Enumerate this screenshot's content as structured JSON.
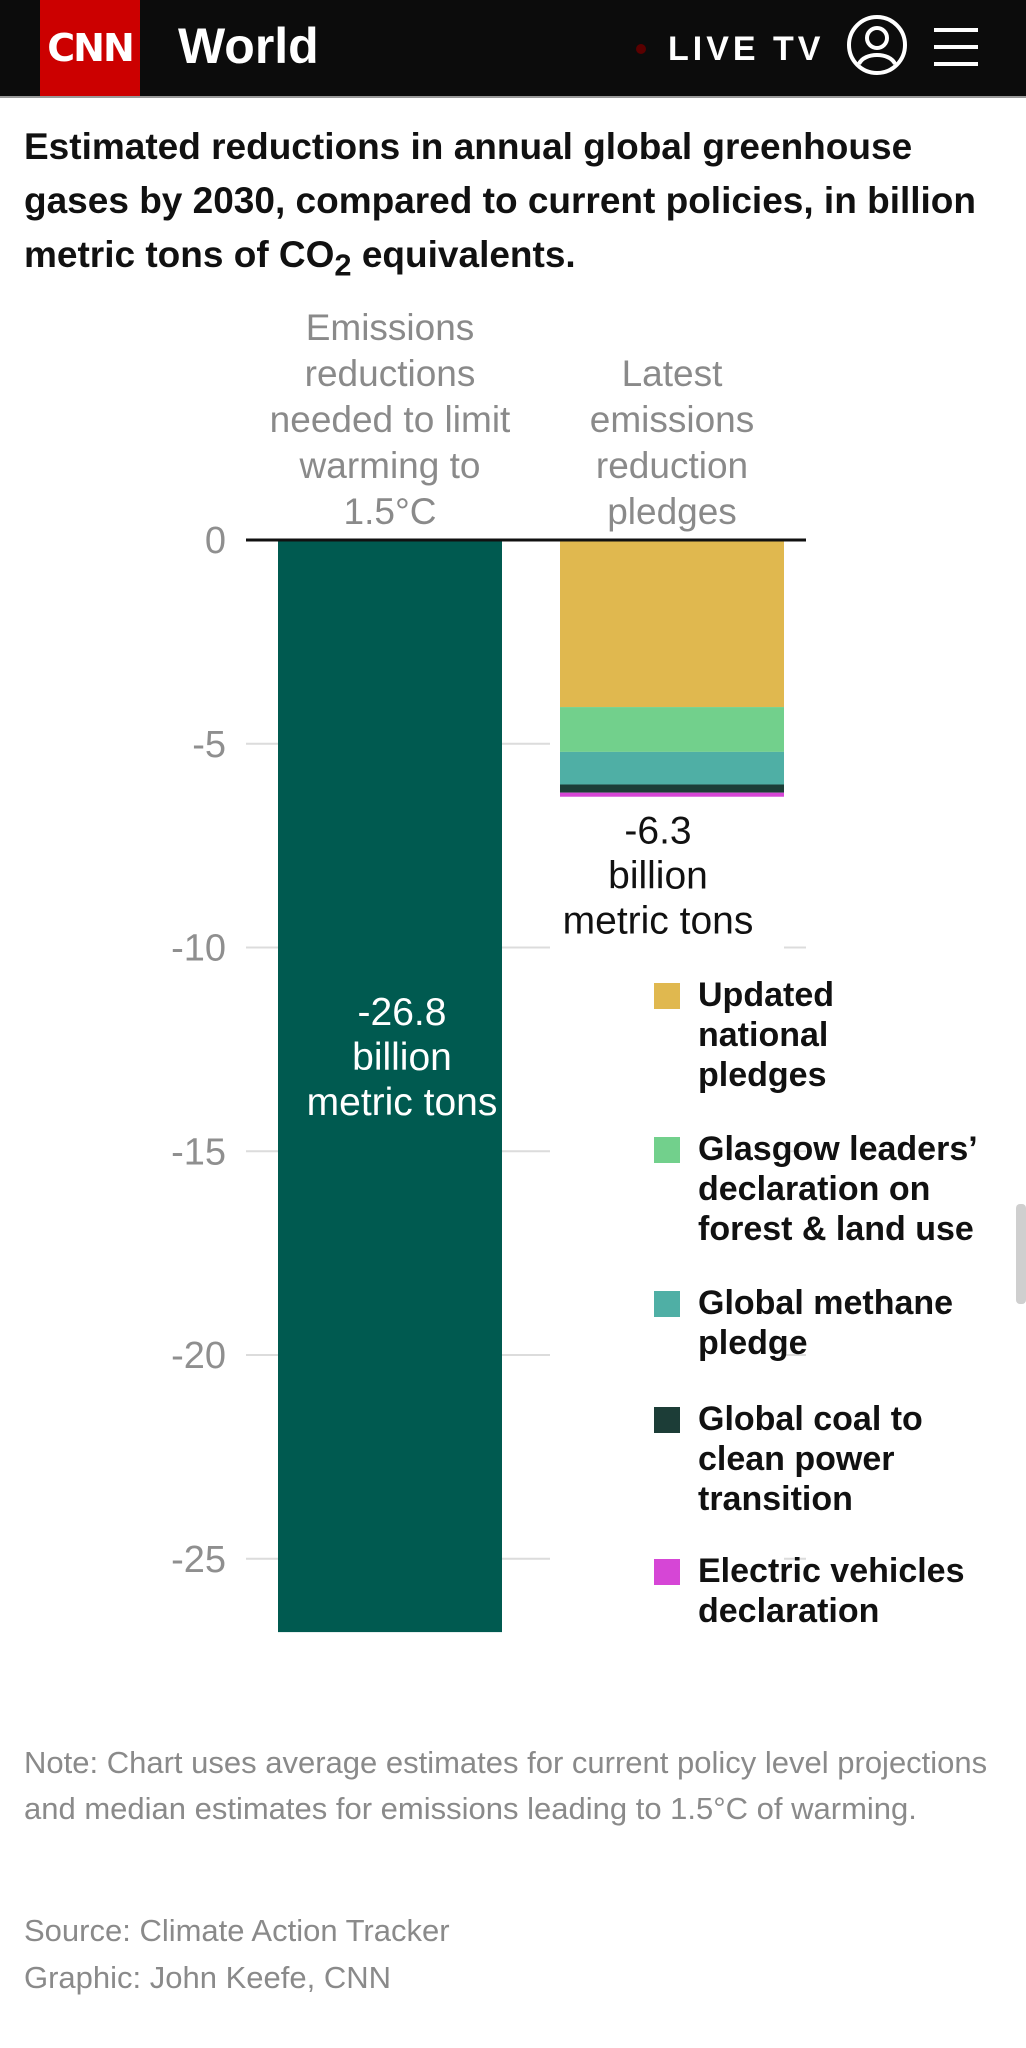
{
  "header": {
    "logo": "CNN",
    "section": "World",
    "live_tv": "LIVE TV",
    "icons": [
      "account-icon",
      "menu-icon"
    ]
  },
  "colors": {
    "header_bg": "#0c0c0c",
    "logo_red": "#cc0000",
    "needed_bar": "#005a50",
    "updated_national": "#e0b84f",
    "glasgow": "#72d08c",
    "methane": "#4fafa5",
    "coal": "#1c3d37",
    "ev": "#d646d6"
  },
  "title": {
    "main": "Estimated reductions in annual global greenhouse gases by 2030, compared to current policies, in billion metric tons of CO",
    "subscript": "2",
    "tail": " equivalents."
  },
  "chart_data": {
    "type": "bar",
    "stacked": true,
    "categories": [
      "Emissions reductions needed to limit warming to 1.5°C",
      "Latest emissions reduction pledges"
    ],
    "series": [
      {
        "key": "needed",
        "values": [
          -26.8,
          0
        ]
      },
      {
        "name": "Updated national pledges",
        "values": [
          0,
          -4.1
        ]
      },
      {
        "name": "Glasgow leaders’ declaration on forest & land use",
        "values": [
          0,
          -1.1
        ]
      },
      {
        "name": "Global methane pledge",
        "values": [
          0,
          -0.8
        ]
      },
      {
        "name": "Global coal to clean power transition",
        "values": [
          0,
          -0.2
        ]
      },
      {
        "name": "Electric vehicles declaration",
        "values": [
          0,
          -0.1
        ]
      }
    ],
    "bar_labels": [
      [
        "-26.8",
        "billion",
        "metric tons"
      ],
      [
        "-6.3",
        "billion",
        "metric tons"
      ]
    ],
    "ylim": [
      -27,
      0
    ],
    "yticks": [
      0,
      -5,
      -10,
      -15,
      -20,
      -25
    ],
    "gridlines": true,
    "legend_position": "right"
  },
  "legend": [
    {
      "label": "Updated national pledges",
      "lines": [
        "Updated",
        "national",
        "pledges"
      ],
      "color": "#e0b84f"
    },
    {
      "label": "Glasgow leaders’ declaration on forest & land use",
      "lines": [
        "Glasgow leaders’",
        "declaration on",
        "forest & land use"
      ],
      "color": "#72d08c"
    },
    {
      "label": "Global methane pledge",
      "lines": [
        "Global methane",
        "pledge"
      ],
      "color": "#4fafa5"
    },
    {
      "label": "Global coal to clean power transition",
      "lines": [
        "Global coal to",
        "clean power",
        "transition"
      ],
      "color": "#1c3d37"
    },
    {
      "label": "Electric vehicles declaration",
      "lines": [
        "Electric vehicles",
        "declaration"
      ],
      "color": "#d646d6"
    }
  ],
  "note": "Note: Chart uses average estimates for current policy level projections and median estimates for emissions leading to 1.5°C of warming.",
  "source": "Source: Climate Action Tracker",
  "graphic": "Graphic: John Keefe, CNN"
}
